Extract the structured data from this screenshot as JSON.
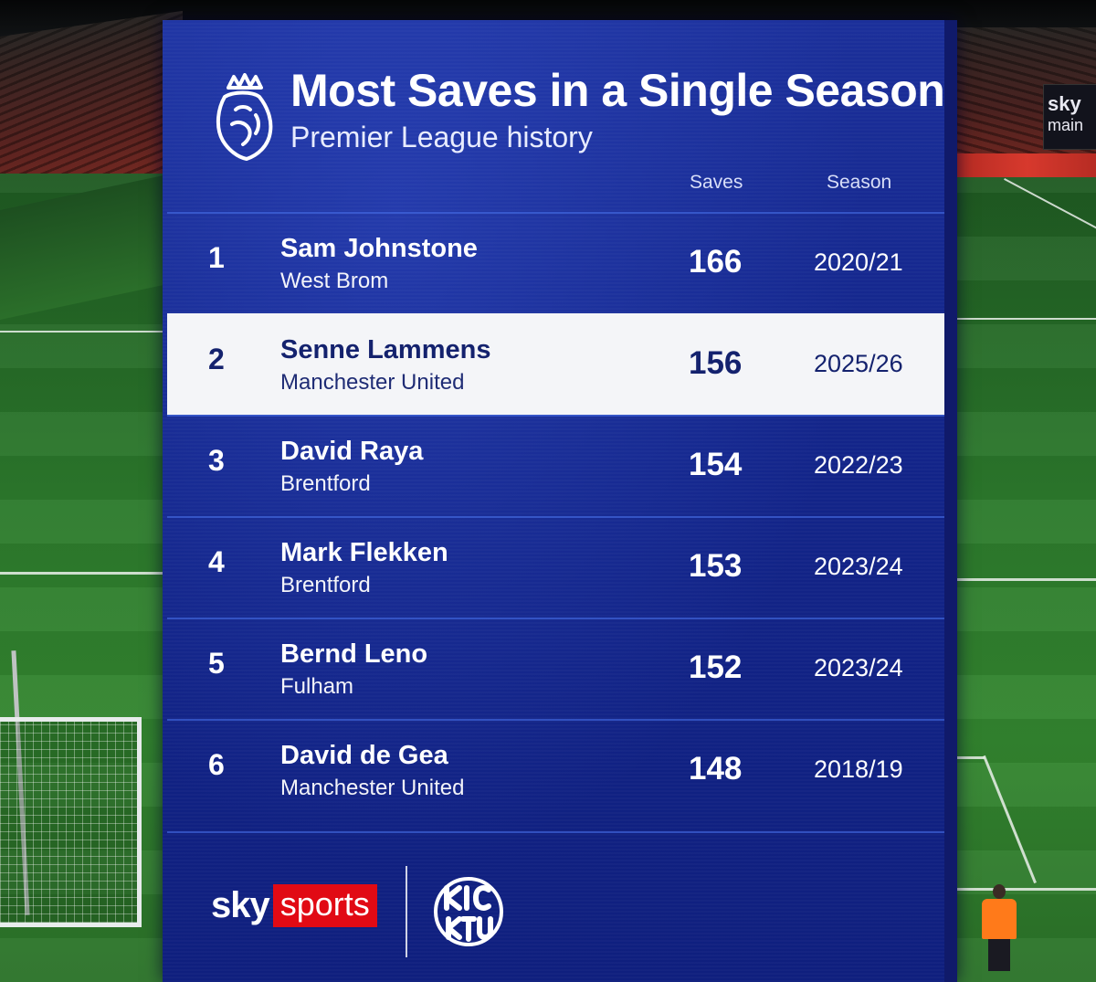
{
  "graphic": {
    "title": "Most Saves in a Single Season",
    "subtitle": "Premier League history",
    "columns": {
      "saves": "Saves",
      "season": "Season"
    },
    "rows": [
      {
        "rank": "1",
        "name": "Sam Johnstone",
        "club": "West Brom",
        "saves": "166",
        "season": "2020/21",
        "highlighted": false
      },
      {
        "rank": "2",
        "name": "Senne Lammens",
        "club": "Manchester United",
        "saves": "156",
        "season": "2025/26",
        "highlighted": true
      },
      {
        "rank": "3",
        "name": "David Raya",
        "club": "Brentford",
        "saves": "154",
        "season": "2022/23",
        "highlighted": false
      },
      {
        "rank": "4",
        "name": "Mark Flekken",
        "club": "Brentford",
        "saves": "153",
        "season": "2023/24",
        "highlighted": false
      },
      {
        "rank": "5",
        "name": "Bernd Leno",
        "club": "Fulham",
        "saves": "152",
        "season": "2023/24",
        "highlighted": false
      },
      {
        "rank": "6",
        "name": "David de Gea",
        "club": "Manchester United",
        "saves": "148",
        "season": "2018/19",
        "highlighted": false
      }
    ],
    "footer": {
      "sky_word": "sky",
      "sports_word": "sports",
      "partner_logo": "Kick It Out"
    },
    "icons": {
      "league_logo": "premier-league-lion-icon",
      "partner_logo": "kick-it-out-logo"
    },
    "colors": {
      "panel_blue": "#13258a",
      "highlight_row": "#f4f5f8",
      "sky_sports_red": "#e10a14"
    }
  },
  "background": {
    "stadium_board_text": "sky",
    "stadium_board_subtext": "main"
  }
}
